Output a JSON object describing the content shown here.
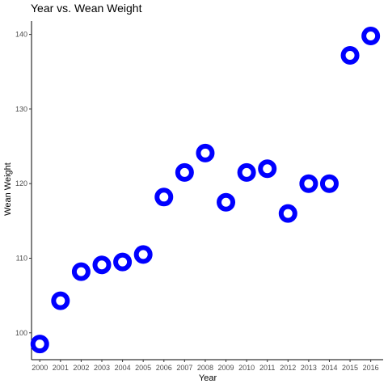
{
  "chart_data": {
    "type": "scatter",
    "title": "Year vs.  Wean Weight",
    "xlabel": "Year",
    "ylabel": "Wean Weight",
    "x": [
      2000,
      2001,
      2002,
      2003,
      2004,
      2005,
      2006,
      2007,
      2008,
      2009,
      2010,
      2011,
      2012,
      2013,
      2014,
      2015,
      2016
    ],
    "y": [
      98.5,
      104.3,
      108.2,
      109.1,
      109.5,
      110.5,
      118.2,
      121.5,
      124.1,
      117.5,
      121.5,
      122,
      116,
      120,
      120,
      137.2,
      139.8
    ],
    "x_ticks": [
      "2000",
      "2001",
      "2002",
      "2003",
      "2004",
      "2005",
      "2006",
      "2007",
      "2008",
      "2009",
      "2010",
      "2011",
      "2012",
      "2013",
      "2014",
      "2015",
      "2016"
    ],
    "y_ticks": [
      100,
      110,
      120,
      130,
      140
    ],
    "xlim": [
      1999.6,
      2016.6
    ],
    "ylim": [
      96.4,
      141.8
    ],
    "grid": false,
    "point_color": "#0000FF",
    "point_fill": "#FFFFFF"
  }
}
